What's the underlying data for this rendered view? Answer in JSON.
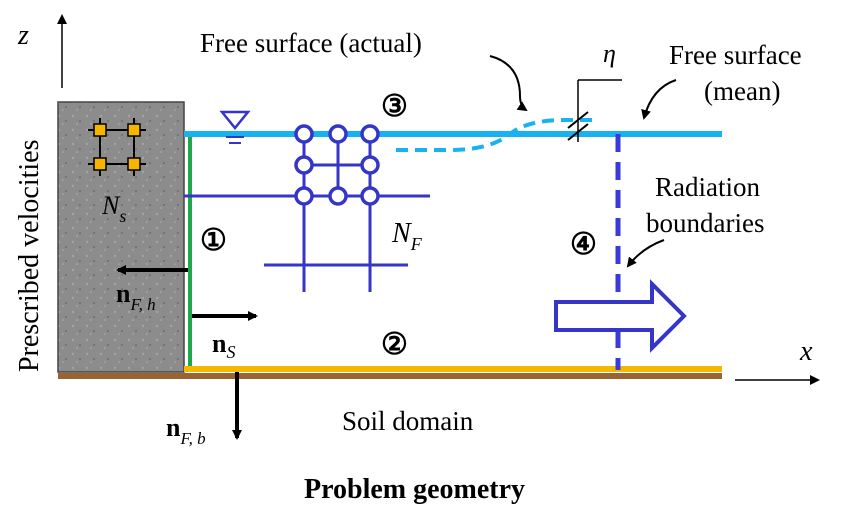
{
  "labels": {
    "axis_z": "z",
    "axis_x": "x",
    "prescribed_velocities": "Prescribed velocities",
    "n_s_structure": "N",
    "n_s_sub": "s",
    "n_f": "N",
    "n_f_sub": "F",
    "free_surface_actual": "Free surface (actual)",
    "eta": "η",
    "free_surface_mean_line1": "Free surface",
    "free_surface_mean_line2": "(mean)",
    "radiation_line1": "Radiation",
    "radiation_line2": "boundaries",
    "soil_domain": "Soil domain",
    "title": "Problem geometry",
    "vec_nfh": "n",
    "vec_nfh_sub": "F, h",
    "vec_ns": "n",
    "vec_ns_sub": "S",
    "vec_nfb": "n",
    "vec_nfb_sub": "F, b"
  },
  "boundaries": [
    {
      "id": "1",
      "label": "①",
      "color": "#1fa84a"
    },
    {
      "id": "2",
      "label": "②",
      "color": "#f5b800"
    },
    {
      "id": "3",
      "label": "③",
      "color": "#19b2f0"
    },
    {
      "id": "4",
      "label": "④",
      "color": "#3a3adb"
    }
  ],
  "colors": {
    "fluid_mesh": "#3535c8",
    "structure": "#8a8a8a",
    "soil": "#9a6432",
    "node_fill": "#f7b500"
  }
}
